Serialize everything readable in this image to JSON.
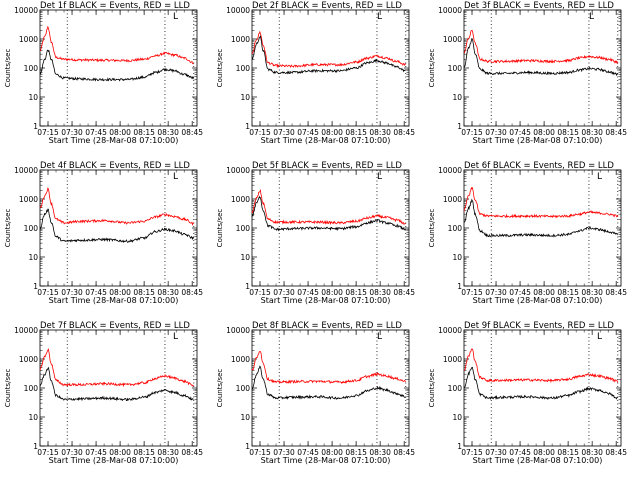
{
  "chart_data": [
    {
      "type": "line",
      "title": "Det 1f BLACK = Events, RED = LLD",
      "xlabel": "Start Time (28-Mar-08 07:10:00)",
      "ylabel": "Counts/sec",
      "y_scale": "log",
      "ylim": [
        1,
        10000
      ],
      "xlim": [
        "07:10",
        "08:48"
      ],
      "x_ticks": [
        "07:15",
        "07:30",
        "07:45",
        "08:00",
        "08:15",
        "08:30",
        "08:45"
      ],
      "y_ticks": [
        "1",
        "10",
        "100",
        "1000",
        "10000"
      ],
      "vlines": [
        "07:27",
        "08:28",
        "08:46"
      ],
      "marker_label": "L",
      "marker_x": "08:33",
      "series": [
        {
          "color": "#ff0000",
          "x": [
            "07:10",
            "07:13",
            "07:15",
            "07:17",
            "07:20",
            "07:25",
            "07:35",
            "07:50",
            "08:05",
            "08:15",
            "08:22",
            "08:28",
            "08:34",
            "08:40",
            "08:46"
          ],
          "values": [
            400,
            1200,
            2600,
            800,
            230,
            200,
            190,
            185,
            180,
            200,
            260,
            320,
            280,
            220,
            150
          ]
        },
        {
          "color": "#000000",
          "x": [
            "07:10",
            "07:13",
            "07:15",
            "07:17",
            "07:20",
            "07:25",
            "07:35",
            "07:50",
            "08:05",
            "08:15",
            "08:22",
            "08:28",
            "08:34",
            "08:40",
            "08:46"
          ],
          "values": [
            60,
            200,
            420,
            200,
            60,
            45,
            42,
            40,
            40,
            48,
            70,
            90,
            80,
            60,
            45
          ]
        }
      ]
    },
    {
      "type": "line",
      "title": "Det 2f BLACK = Events, RED = LLD",
      "xlabel": "Start Time (28-Mar-08 07:10:00)",
      "ylabel": "Counts/sec",
      "y_scale": "log",
      "ylim": [
        1,
        10000
      ],
      "xlim": [
        "07:10",
        "08:48"
      ],
      "x_ticks": [
        "07:15",
        "07:30",
        "07:45",
        "08:00",
        "08:15",
        "08:30",
        "08:45"
      ],
      "y_ticks": [
        "1",
        "10",
        "100",
        "1000",
        "10000"
      ],
      "vlines": [
        "07:27",
        "08:28",
        "08:46"
      ],
      "marker_label": "L",
      "marker_x": "08:28",
      "series": [
        {
          "color": "#ff0000",
          "x": [
            "07:10",
            "07:13",
            "07:15",
            "07:17",
            "07:20",
            "07:25",
            "07:35",
            "07:50",
            "08:05",
            "08:15",
            "08:22",
            "08:28",
            "08:34",
            "08:40",
            "08:46"
          ],
          "values": [
            300,
            1000,
            1700,
            600,
            150,
            120,
            115,
            130,
            130,
            160,
            220,
            260,
            220,
            170,
            130
          ]
        },
        {
          "color": "#000000",
          "x": [
            "07:10",
            "07:13",
            "07:15",
            "07:17",
            "07:20",
            "07:25",
            "07:35",
            "07:50",
            "08:05",
            "08:15",
            "08:22",
            "08:28",
            "08:34",
            "08:40",
            "08:46"
          ],
          "values": [
            200,
            700,
            1200,
            400,
            90,
            70,
            70,
            80,
            80,
            100,
            150,
            180,
            150,
            110,
            80
          ]
        }
      ]
    },
    {
      "type": "line",
      "title": "Det 3f BLACK = Events, RED = LLD",
      "xlabel": "Start Time (28-Mar-08 07:10:00)",
      "ylabel": "Counts/sec",
      "y_scale": "log",
      "ylim": [
        1,
        10000
      ],
      "xlim": [
        "07:10",
        "08:48"
      ],
      "x_ticks": [
        "07:15",
        "07:30",
        "07:45",
        "08:00",
        "08:15",
        "08:30",
        "08:45"
      ],
      "y_ticks": [
        "1",
        "10",
        "100",
        "1000",
        "10000"
      ],
      "vlines": [
        "07:27",
        "08:28",
        "08:46"
      ],
      "marker_label": "L",
      "marker_x": "08:28",
      "series": [
        {
          "color": "#ff0000",
          "x": [
            "07:10",
            "07:13",
            "07:15",
            "07:17",
            "07:20",
            "07:25",
            "07:35",
            "07:50",
            "08:05",
            "08:15",
            "08:22",
            "08:28",
            "08:34",
            "08:40",
            "08:46"
          ],
          "values": [
            350,
            1100,
            2000,
            700,
            200,
            170,
            170,
            180,
            170,
            180,
            220,
            250,
            230,
            200,
            160
          ]
        },
        {
          "color": "#000000",
          "x": [
            "07:10",
            "07:13",
            "07:15",
            "07:17",
            "07:20",
            "07:25",
            "07:35",
            "07:50",
            "08:05",
            "08:15",
            "08:22",
            "08:28",
            "08:34",
            "08:40",
            "08:46"
          ],
          "values": [
            100,
            500,
            1000,
            300,
            90,
            65,
            65,
            70,
            65,
            70,
            85,
            95,
            90,
            75,
            60
          ]
        }
      ]
    },
    {
      "type": "line",
      "title": "Det 4f BLACK = Events, RED = LLD",
      "xlabel": "Start Time (28-Mar-08 07:10:00)",
      "ylabel": "Counts/sec",
      "y_scale": "log",
      "ylim": [
        1,
        10000
      ],
      "xlim": [
        "07:10",
        "08:48"
      ],
      "x_ticks": [
        "07:15",
        "07:30",
        "07:45",
        "08:00",
        "08:15",
        "08:30",
        "08:45"
      ],
      "y_ticks": [
        "1",
        "10",
        "100",
        "1000",
        "10000"
      ],
      "vlines": [
        "07:27",
        "08:28",
        "08:46"
      ],
      "marker_label": "L",
      "marker_x": "08:33",
      "series": [
        {
          "color": "#ff0000",
          "x": [
            "07:10",
            "07:13",
            "07:15",
            "07:17",
            "07:20",
            "07:25",
            "07:35",
            "07:50",
            "08:05",
            "08:15",
            "08:22",
            "08:28",
            "08:34",
            "08:40",
            "08:46"
          ],
          "values": [
            500,
            1300,
            2200,
            700,
            200,
            150,
            170,
            180,
            150,
            170,
            240,
            290,
            250,
            200,
            140
          ]
        },
        {
          "color": "#000000",
          "x": [
            "07:10",
            "07:13",
            "07:15",
            "07:17",
            "07:20",
            "07:25",
            "07:35",
            "07:50",
            "08:05",
            "08:15",
            "08:22",
            "08:28",
            "08:34",
            "08:40",
            "08:46"
          ],
          "values": [
            100,
            300,
            420,
            160,
            50,
            35,
            38,
            40,
            35,
            45,
            75,
            90,
            80,
            60,
            45
          ]
        }
      ]
    },
    {
      "type": "line",
      "title": "Det 5f BLACK = Events, RED = LLD",
      "xlabel": "Start Time (28-Mar-08 07:10:00)",
      "ylabel": "Counts/sec",
      "y_scale": "log",
      "ylim": [
        1,
        10000
      ],
      "xlim": [
        "07:10",
        "08:48"
      ],
      "x_ticks": [
        "07:15",
        "07:30",
        "07:45",
        "08:00",
        "08:15",
        "08:30",
        "08:45"
      ],
      "y_ticks": [
        "1",
        "10",
        "100",
        "1000",
        "10000"
      ],
      "vlines": [
        "07:27",
        "08:28",
        "08:46"
      ],
      "marker_label": "L",
      "marker_x": "08:28",
      "series": [
        {
          "color": "#ff0000",
          "x": [
            "07:10",
            "07:13",
            "07:15",
            "07:17",
            "07:20",
            "07:25",
            "07:35",
            "07:50",
            "08:05",
            "08:15",
            "08:22",
            "08:28",
            "08:34",
            "08:40",
            "08:46"
          ],
          "values": [
            350,
            1100,
            1900,
            700,
            200,
            160,
            160,
            160,
            150,
            170,
            220,
            260,
            230,
            190,
            140
          ]
        },
        {
          "color": "#000000",
          "x": [
            "07:10",
            "07:13",
            "07:15",
            "07:17",
            "07:20",
            "07:25",
            "07:35",
            "07:50",
            "08:05",
            "08:15",
            "08:22",
            "08:28",
            "08:34",
            "08:40",
            "08:46"
          ],
          "values": [
            250,
            750,
            1200,
            400,
            120,
            90,
            95,
            100,
            95,
            110,
            150,
            180,
            150,
            120,
            90
          ]
        }
      ]
    },
    {
      "type": "line",
      "title": "Det 6f BLACK = Events, RED = LLD",
      "xlabel": "Start Time (28-Mar-08 07:10:00)",
      "ylabel": "Counts/sec",
      "y_scale": "log",
      "ylim": [
        1,
        10000
      ],
      "xlim": [
        "07:10",
        "08:48"
      ],
      "x_ticks": [
        "07:15",
        "07:30",
        "07:45",
        "08:00",
        "08:15",
        "08:30",
        "08:45"
      ],
      "y_ticks": [
        "1",
        "10",
        "100",
        "1000",
        "10000"
      ],
      "vlines": [
        "07:27",
        "08:28",
        "08:46"
      ],
      "marker_label": "L",
      "marker_x": "08:33",
      "series": [
        {
          "color": "#ff0000",
          "x": [
            "07:10",
            "07:13",
            "07:15",
            "07:17",
            "07:20",
            "07:25",
            "07:35",
            "07:50",
            "08:05",
            "08:15",
            "08:22",
            "08:28",
            "08:34",
            "08:40",
            "08:46"
          ],
          "values": [
            400,
            1300,
            2400,
            900,
            300,
            260,
            255,
            260,
            250,
            260,
            300,
            350,
            330,
            300,
            260
          ]
        },
        {
          "color": "#000000",
          "x": [
            "07:10",
            "07:13",
            "07:15",
            "07:17",
            "07:20",
            "07:25",
            "07:35",
            "07:50",
            "08:05",
            "08:15",
            "08:22",
            "08:28",
            "08:34",
            "08:40",
            "08:46"
          ],
          "values": [
            150,
            500,
            900,
            300,
            80,
            55,
            55,
            58,
            55,
            60,
            80,
            100,
            90,
            75,
            60
          ]
        }
      ]
    },
    {
      "type": "line",
      "title": "Det 7f BLACK = Events, RED = LLD",
      "xlabel": "Start Time (28-Mar-08 07:10:00)",
      "ylabel": "Counts/sec",
      "y_scale": "log",
      "ylim": [
        1,
        10000
      ],
      "xlim": [
        "07:10",
        "08:48"
      ],
      "x_ticks": [
        "07:15",
        "07:30",
        "07:45",
        "08:00",
        "08:15",
        "08:30",
        "08:45"
      ],
      "y_ticks": [
        "1",
        "10",
        "100",
        "1000",
        "10000"
      ],
      "vlines": [
        "07:27",
        "08:28",
        "08:46"
      ],
      "marker_label": "L",
      "marker_x": "08:33",
      "series": [
        {
          "color": "#ff0000",
          "x": [
            "07:10",
            "07:13",
            "07:15",
            "07:17",
            "07:20",
            "07:25",
            "07:35",
            "07:50",
            "08:05",
            "08:15",
            "08:22",
            "08:28",
            "08:34",
            "08:40",
            "08:46"
          ],
          "values": [
            450,
            1200,
            2100,
            700,
            180,
            130,
            130,
            140,
            130,
            150,
            210,
            260,
            220,
            170,
            120
          ]
        },
        {
          "color": "#000000",
          "x": [
            "07:10",
            "07:13",
            "07:15",
            "07:17",
            "07:20",
            "07:25",
            "07:35",
            "07:50",
            "08:05",
            "08:15",
            "08:22",
            "08:28",
            "08:34",
            "08:40",
            "08:46"
          ],
          "values": [
            120,
            300,
            480,
            180,
            55,
            40,
            42,
            45,
            40,
            48,
            70,
            85,
            70,
            55,
            40
          ]
        }
      ]
    },
    {
      "type": "line",
      "title": "Det 8f BLACK = Events, RED = LLD",
      "xlabel": "Start Time (28-Mar-08 07:10:00)",
      "ylabel": "Counts/sec",
      "y_scale": "log",
      "ylim": [
        1,
        10000
      ],
      "xlim": [
        "07:10",
        "08:48"
      ],
      "x_ticks": [
        "07:15",
        "07:30",
        "07:45",
        "08:00",
        "08:15",
        "08:30",
        "08:45"
      ],
      "y_ticks": [
        "1",
        "10",
        "100",
        "1000",
        "10000"
      ],
      "vlines": [
        "07:27",
        "08:28",
        "08:46"
      ],
      "marker_label": "L",
      "marker_x": "08:28",
      "series": [
        {
          "color": "#ff0000",
          "x": [
            "07:10",
            "07:13",
            "07:15",
            "07:17",
            "07:20",
            "07:25",
            "07:35",
            "07:50",
            "08:05",
            "08:15",
            "08:22",
            "08:28",
            "08:34",
            "08:40",
            "08:46"
          ],
          "values": [
            400,
            1100,
            2000,
            700,
            200,
            160,
            165,
            170,
            160,
            180,
            250,
            300,
            260,
            210,
            170
          ]
        },
        {
          "color": "#000000",
          "x": [
            "07:10",
            "07:13",
            "07:15",
            "07:17",
            "07:20",
            "07:25",
            "07:35",
            "07:50",
            "08:05",
            "08:15",
            "08:22",
            "08:28",
            "08:34",
            "08:40",
            "08:46"
          ],
          "values": [
            100,
            300,
            520,
            200,
            60,
            45,
            48,
            50,
            45,
            55,
            80,
            100,
            85,
            65,
            50
          ]
        }
      ]
    },
    {
      "type": "line",
      "title": "Det 9f BLACK = Events, RED = LLD",
      "xlabel": "Start Time (28-Mar-08 07:10:00)",
      "ylabel": "Counts/sec",
      "y_scale": "log",
      "ylim": [
        1,
        10000
      ],
      "xlim": [
        "07:10",
        "08:48"
      ],
      "x_ticks": [
        "07:15",
        "07:30",
        "07:45",
        "08:00",
        "08:15",
        "08:30",
        "08:45"
      ],
      "y_ticks": [
        "1",
        "10",
        "100",
        "1000",
        "10000"
      ],
      "vlines": [
        "07:27",
        "08:28",
        "08:46"
      ],
      "marker_label": "L",
      "marker_x": "08:33",
      "series": [
        {
          "color": "#ff0000",
          "x": [
            "07:10",
            "07:13",
            "07:15",
            "07:17",
            "07:20",
            "07:25",
            "07:35",
            "07:50",
            "08:05",
            "08:15",
            "08:22",
            "08:28",
            "08:34",
            "08:40",
            "08:46"
          ],
          "values": [
            400,
            1300,
            2300,
            800,
            230,
            180,
            185,
            190,
            180,
            200,
            250,
            290,
            260,
            220,
            170
          ]
        },
        {
          "color": "#000000",
          "x": [
            "07:10",
            "07:13",
            "07:15",
            "07:17",
            "07:20",
            "07:25",
            "07:35",
            "07:50",
            "08:05",
            "08:15",
            "08:22",
            "08:28",
            "08:34",
            "08:40",
            "08:46"
          ],
          "values": [
            100,
            320,
            520,
            200,
            60,
            45,
            48,
            50,
            45,
            55,
            75,
            95,
            85,
            65,
            45
          ]
        }
      ]
    }
  ]
}
